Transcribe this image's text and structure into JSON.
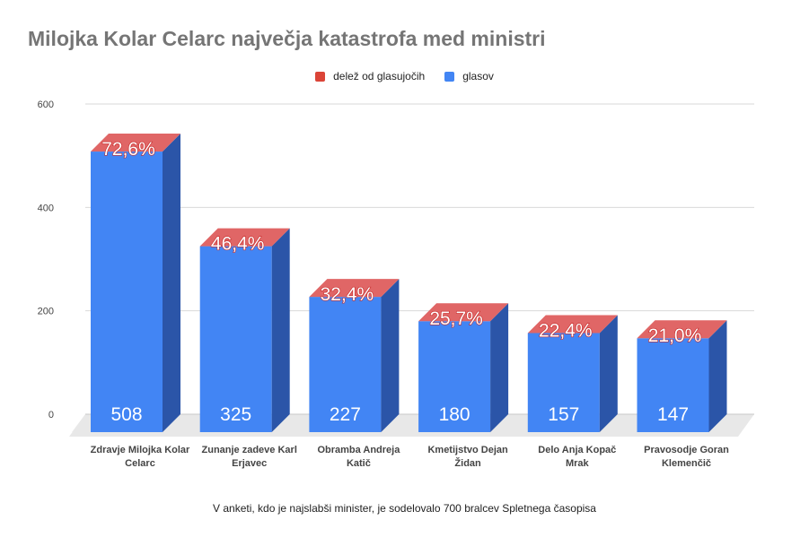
{
  "chart_data": {
    "type": "bar",
    "title": "Milojka Kolar Celarc največja katastrofa med ministri",
    "categories": [
      [
        "Zdravje Milojka Kolar",
        "Celarc"
      ],
      [
        "Zunanje zadeve Karl",
        "Erjavec"
      ],
      [
        "Obramba Andreja",
        "Katič"
      ],
      [
        "Kmetijstvo Dejan",
        "Židan"
      ],
      [
        "Delo Anja Kopač",
        "Mrak"
      ],
      [
        "Pravosodje Goran",
        "Klemenčič"
      ]
    ],
    "series": [
      {
        "name": "glasov",
        "values": [
          508,
          325,
          227,
          180,
          157,
          147
        ],
        "labels": [
          "508",
          "325",
          "227",
          "180",
          "157",
          "147"
        ]
      },
      {
        "name": "delež od glasujočih",
        "values": [
          72.6,
          46.4,
          32.4,
          25.7,
          22.4,
          21.0
        ],
        "labels": [
          "72,6%",
          "46,4%",
          "32,4%",
          "25,7%",
          "22,4%",
          "21,0%"
        ]
      }
    ],
    "yticks": [
      "0",
      "200",
      "400",
      "600"
    ],
    "ylim": [
      0,
      600
    ],
    "legend_position": "top",
    "gridlines": true,
    "colors": {
      "glasov": "#4285f4",
      "glasov_side": "#2b55a8",
      "delez": "#db4437",
      "delez_top": "#e06666"
    },
    "footnote": "V anketi, kdo je najslabši minister, je sodelovalo 700 bralcev Spletnega časopisa"
  }
}
